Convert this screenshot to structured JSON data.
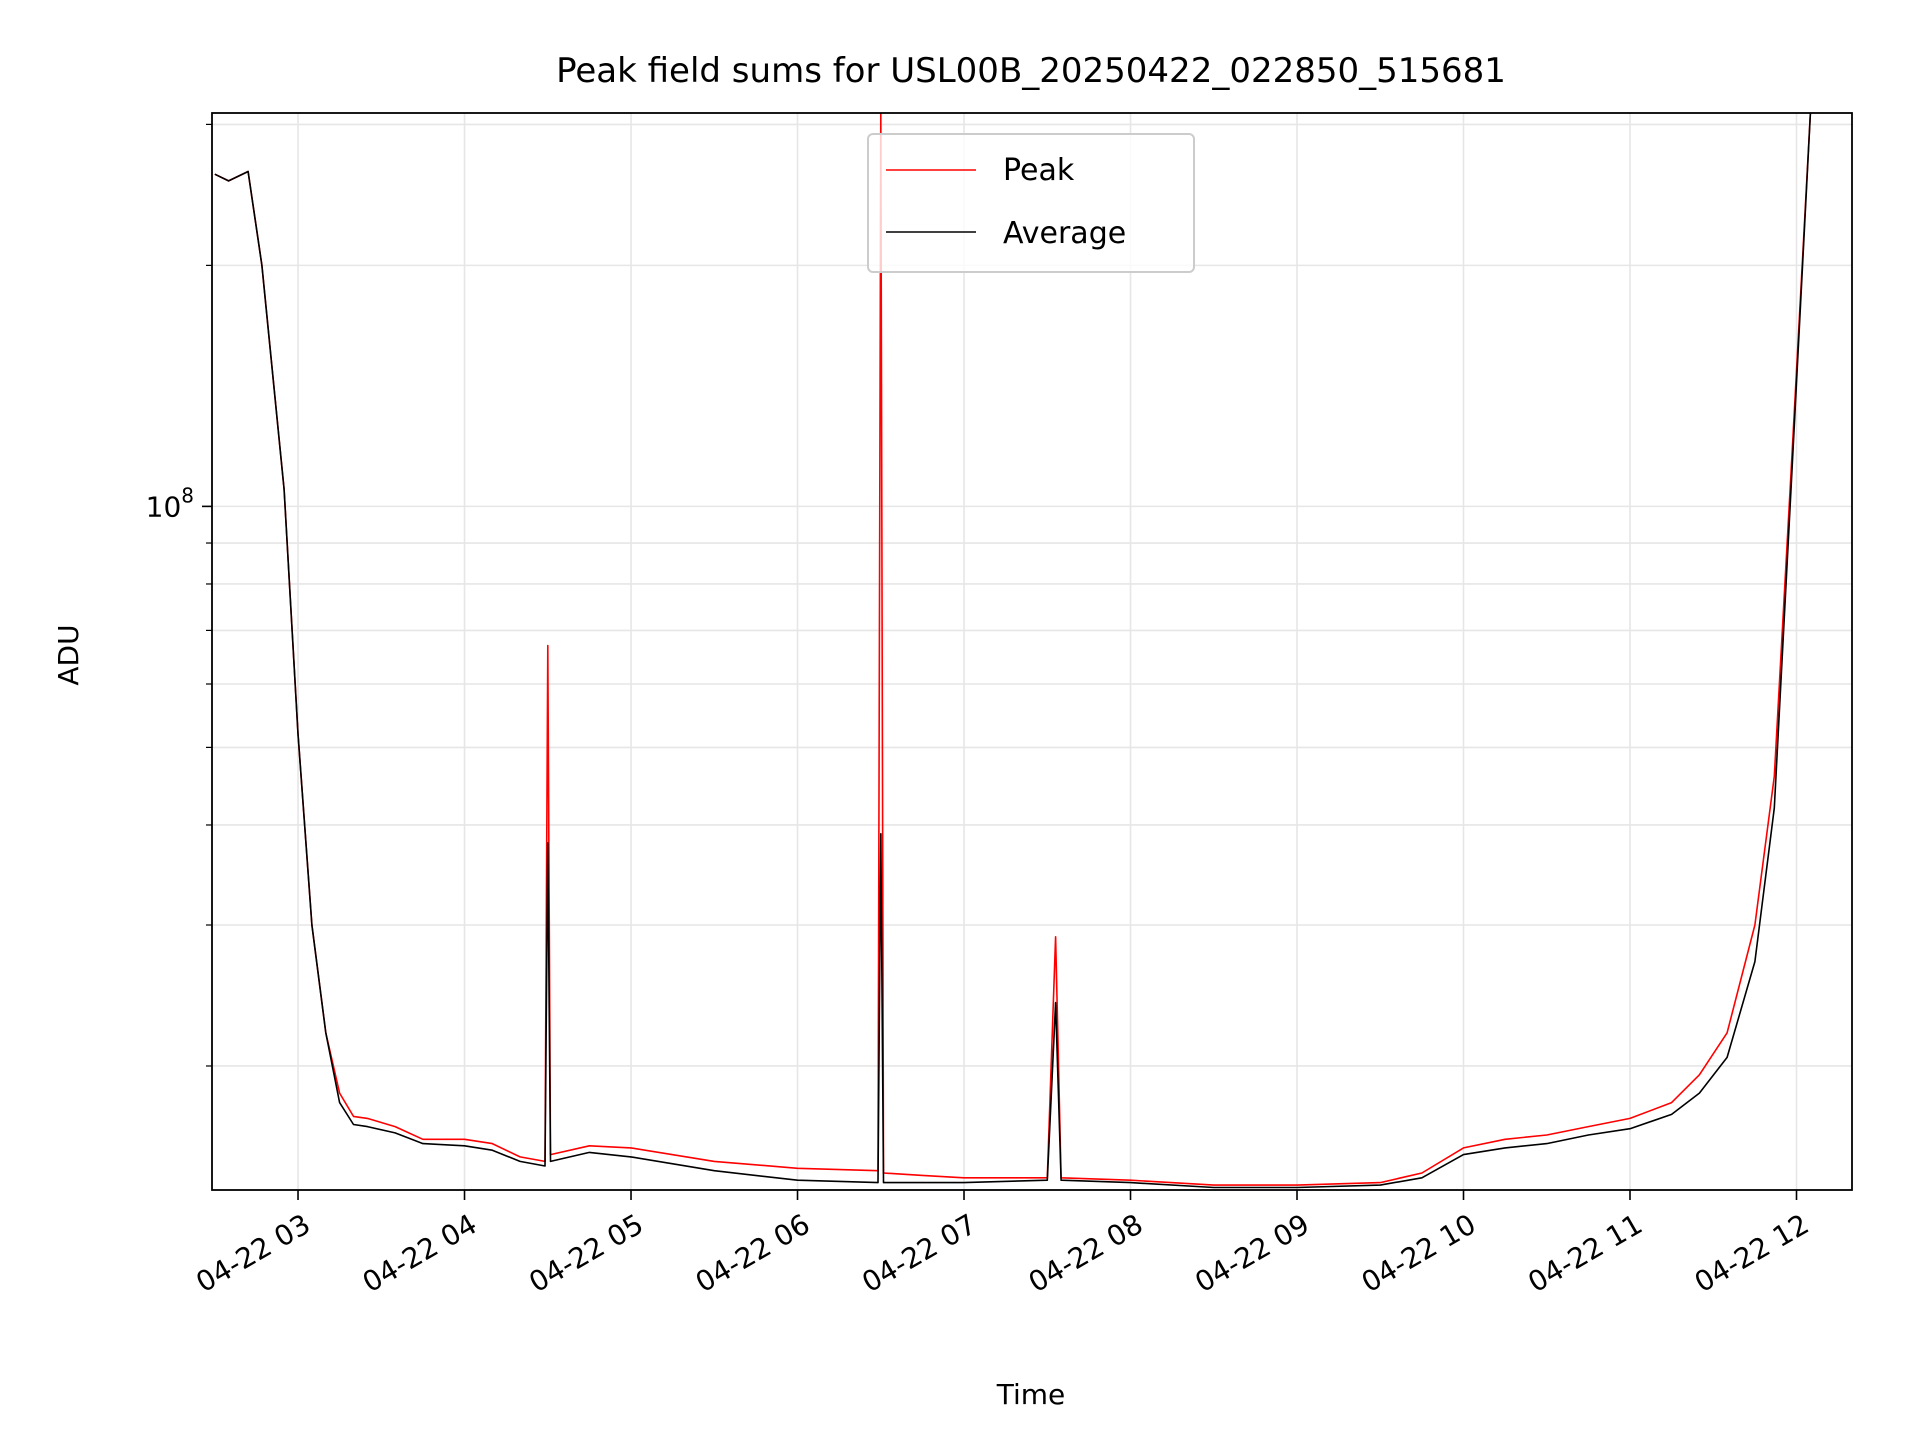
{
  "chart_data": {
    "type": "line",
    "title": "Peak field sums for USL00B_20250422_022850_515681",
    "xlabel": "Time",
    "ylabel": "ADU",
    "yscale": "log",
    "ylim": [
      14000000,
      310000000
    ],
    "x_ticks": [
      {
        "x": "2025-04-22T03:00",
        "label": "04-22 03"
      },
      {
        "x": "2025-04-22T04:00",
        "label": "04-22 04"
      },
      {
        "x": "2025-04-22T05:00",
        "label": "04-22 05"
      },
      {
        "x": "2025-04-22T06:00",
        "label": "04-22 06"
      },
      {
        "x": "2025-04-22T07:00",
        "label": "04-22 07"
      },
      {
        "x": "2025-04-22T08:00",
        "label": "04-22 08"
      },
      {
        "x": "2025-04-22T09:00",
        "label": "04-22 09"
      },
      {
        "x": "2025-04-22T10:00",
        "label": "04-22 10"
      },
      {
        "x": "2025-04-22T11:00",
        "label": "04-22 11"
      },
      {
        "x": "2025-04-22T12:00",
        "label": "04-22 12"
      }
    ],
    "y_major_ticks": [
      {
        "value": 100000000,
        "base": "10",
        "exp": "8"
      }
    ],
    "y_minor_ticks": [
      20000000,
      30000000,
      40000000,
      50000000,
      60000000,
      70000000,
      80000000,
      90000000,
      200000000,
      300000000
    ],
    "grid": true,
    "legend_position": "upper center",
    "series": [
      {
        "name": "Peak",
        "color": "#ff0000",
        "x": [
          "2025-04-22T02:30",
          "2025-04-22T02:35",
          "2025-04-22T02:42",
          "2025-04-22T02:47",
          "2025-04-22T02:55",
          "2025-04-22T03:00",
          "2025-04-22T03:05",
          "2025-04-22T03:10",
          "2025-04-22T03:15",
          "2025-04-22T03:20",
          "2025-04-22T03:25",
          "2025-04-22T03:35",
          "2025-04-22T03:45",
          "2025-04-22T04:00",
          "2025-04-22T04:10",
          "2025-04-22T04:20",
          "2025-04-22T04:29",
          "2025-04-22T04:30",
          "2025-04-22T04:31",
          "2025-04-22T04:45",
          "2025-04-22T05:00",
          "2025-04-22T05:30",
          "2025-04-22T06:00",
          "2025-04-22T06:29",
          "2025-04-22T06:30",
          "2025-04-22T06:31",
          "2025-04-22T06:45",
          "2025-04-22T07:00",
          "2025-04-22T07:30",
          "2025-04-22T07:33",
          "2025-04-22T07:35",
          "2025-04-22T08:00",
          "2025-04-22T08:30",
          "2025-04-22T09:00",
          "2025-04-22T09:30",
          "2025-04-22T09:45",
          "2025-04-22T10:00",
          "2025-04-22T10:15",
          "2025-04-22T10:30",
          "2025-04-22T10:45",
          "2025-04-22T11:00",
          "2025-04-22T11:15",
          "2025-04-22T11:25",
          "2025-04-22T11:35",
          "2025-04-22T11:45",
          "2025-04-22T11:52",
          "2025-04-22T11:58",
          "2025-04-22T12:05"
        ],
        "y": [
          260000000,
          255000000,
          262000000,
          200000000,
          105000000,
          52000000,
          30000000,
          22000000,
          18500000,
          17300000,
          17200000,
          16800000,
          16200000,
          16200000,
          16000000,
          15400000,
          15200000,
          67000000,
          15500000,
          15900000,
          15800000,
          15200000,
          14900000,
          14800000,
          310000000,
          14700000,
          14600000,
          14500000,
          14500000,
          29000000,
          14500000,
          14400000,
          14200000,
          14200000,
          14300000,
          14700000,
          15800000,
          16200000,
          16400000,
          16800000,
          17200000,
          18000000,
          19500000,
          22000000,
          30000000,
          46000000,
          110000000,
          310000000
        ]
      },
      {
        "name": "Average",
        "color": "#000000",
        "x": [
          "2025-04-22T02:30",
          "2025-04-22T02:35",
          "2025-04-22T02:42",
          "2025-04-22T02:47",
          "2025-04-22T02:55",
          "2025-04-22T03:00",
          "2025-04-22T03:05",
          "2025-04-22T03:10",
          "2025-04-22T03:15",
          "2025-04-22T03:20",
          "2025-04-22T03:25",
          "2025-04-22T03:35",
          "2025-04-22T03:45",
          "2025-04-22T04:00",
          "2025-04-22T04:10",
          "2025-04-22T04:20",
          "2025-04-22T04:29",
          "2025-04-22T04:30",
          "2025-04-22T04:31",
          "2025-04-22T04:45",
          "2025-04-22T05:00",
          "2025-04-22T05:30",
          "2025-04-22T06:00",
          "2025-04-22T06:29",
          "2025-04-22T06:30",
          "2025-04-22T06:31",
          "2025-04-22T06:45",
          "2025-04-22T07:00",
          "2025-04-22T07:30",
          "2025-04-22T07:33",
          "2025-04-22T07:35",
          "2025-04-22T08:00",
          "2025-04-22T08:30",
          "2025-04-22T09:00",
          "2025-04-22T09:30",
          "2025-04-22T09:45",
          "2025-04-22T10:00",
          "2025-04-22T10:15",
          "2025-04-22T10:30",
          "2025-04-22T10:45",
          "2025-04-22T11:00",
          "2025-04-22T11:15",
          "2025-04-22T11:25",
          "2025-04-22T11:35",
          "2025-04-22T11:45",
          "2025-04-22T11:52",
          "2025-04-22T11:58",
          "2025-04-22T12:05"
        ],
        "y": [
          260000000,
          255000000,
          262000000,
          200000000,
          105000000,
          52000000,
          30000000,
          22000000,
          18000000,
          16900000,
          16800000,
          16500000,
          16000000,
          15900000,
          15700000,
          15200000,
          15000000,
          38000000,
          15200000,
          15600000,
          15400000,
          14800000,
          14400000,
          14300000,
          39000000,
          14300000,
          14300000,
          14300000,
          14400000,
          24000000,
          14400000,
          14300000,
          14100000,
          14100000,
          14200000,
          14500000,
          15500000,
          15800000,
          16000000,
          16400000,
          16700000,
          17400000,
          18500000,
          20500000,
          27000000,
          42000000,
          105000000,
          310000000
        ]
      }
    ]
  }
}
